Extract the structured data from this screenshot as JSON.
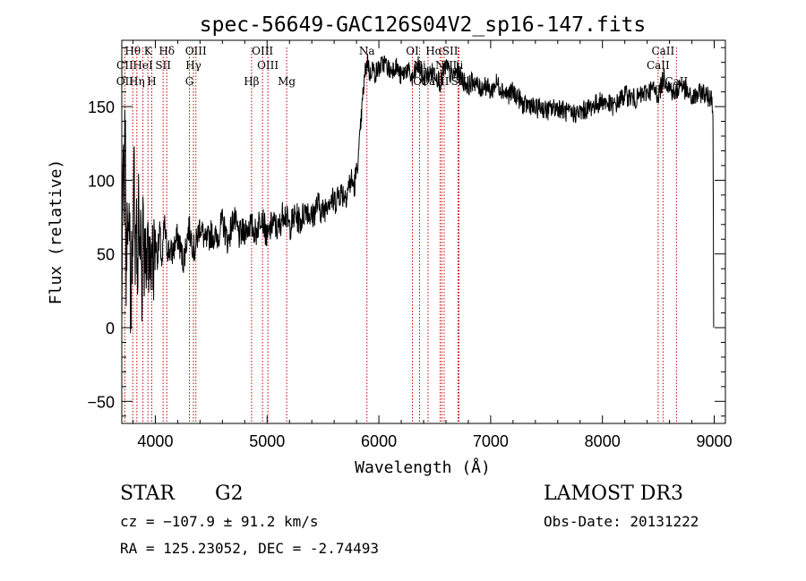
{
  "chart_data": {
    "type": "line",
    "title": "spec-56649-GAC126S04V2_sp16-147.fits",
    "xlabel": "Wavelength (Å)",
    "ylabel": "Flux (relative)",
    "xlim": [
      3700,
      9100
    ],
    "ylim": [
      -65,
      195
    ],
    "xticks": [
      4000,
      5000,
      6000,
      7000,
      8000,
      9000
    ],
    "yticks": [
      -50,
      0,
      50,
      100,
      150
    ],
    "series": [
      {
        "name": "flux",
        "x": [
          3700,
          3710,
          3720,
          3730,
          3740,
          3750,
          3760,
          3770,
          3780,
          3790,
          3800,
          3810,
          3820,
          3830,
          3840,
          3850,
          3860,
          3870,
          3880,
          3890,
          3900,
          3910,
          3920,
          3930,
          3940,
          3950,
          3960,
          3970,
          3980,
          3990,
          4000,
          4020,
          4040,
          4060,
          4080,
          4100,
          4150,
          4200,
          4250,
          4300,
          4350,
          4400,
          4450,
          4500,
          4550,
          4600,
          4650,
          4700,
          4750,
          4800,
          4850,
          4900,
          4950,
          5000,
          5050,
          5100,
          5150,
          5200,
          5250,
          5300,
          5350,
          5400,
          5450,
          5500,
          5550,
          5600,
          5650,
          5700,
          5750,
          5780,
          5800,
          5820,
          5840,
          5860,
          5880,
          5900,
          5920,
          5940,
          5960,
          6000,
          6050,
          6100,
          6150,
          6200,
          6250,
          6300,
          6350,
          6400,
          6450,
          6500,
          6550,
          6600,
          6650,
          6700,
          6750,
          6800,
          6850,
          6900,
          6950,
          7000,
          7050,
          7100,
          7150,
          7200,
          7250,
          7300,
          7350,
          7400,
          7450,
          7500,
          7600,
          7700,
          7800,
          7900,
          8000,
          8100,
          8200,
          8300,
          8400,
          8450,
          8500,
          8550,
          8600,
          8650,
          8700,
          8750,
          8800,
          8850,
          8900,
          8950,
          8980,
          8990,
          8995
        ],
        "y": [
          0,
          130,
          60,
          150,
          20,
          110,
          40,
          90,
          -5,
          70,
          30,
          115,
          50,
          85,
          10,
          100,
          35,
          75,
          20,
          95,
          45,
          60,
          15,
          80,
          40,
          65,
          25,
          70,
          35,
          55,
          60,
          48,
          65,
          40,
          72,
          55,
          50,
          62,
          45,
          68,
          52,
          70,
          57,
          64,
          60,
          72,
          58,
          75,
          62,
          66,
          70,
          64,
          78,
          60,
          72,
          66,
          80,
          68,
          76,
          72,
          82,
          74,
          84,
          78,
          88,
          85,
          92,
          90,
          100,
          96,
          106,
          118,
          140,
          160,
          175,
          182,
          170,
          178,
          172,
          176,
          180,
          174,
          178,
          170,
          176,
          168,
          178,
          170,
          172,
          174,
          166,
          178,
          170,
          174,
          168,
          164,
          168,
          162,
          165,
          160,
          166,
          162,
          158,
          160,
          156,
          150,
          152,
          148,
          150,
          147,
          150,
          145,
          146,
          150,
          154,
          150,
          158,
          155,
          160,
          162,
          158,
          170,
          163,
          158,
          166,
          160,
          155,
          158,
          160,
          156,
          158,
          140,
          0
        ]
      }
    ],
    "lines": [
      {
        "label": "Hθ",
        "x": 3798
      },
      {
        "label": "K",
        "x": 3934
      },
      {
        "label": "Hδ",
        "x": 4102
      },
      {
        "label": "OIII",
        "x": 4363
      },
      {
        "label": "OIII",
        "x": 4959
      },
      {
        "label": "Na",
        "x": 5893
      },
      {
        "label": "OI",
        "x": 6300
      },
      {
        "label": "HαSII",
        "x": 6563
      },
      {
        "label": "CaII",
        "x": 8542
      },
      {
        "label": "CII",
        "x": 3727
      },
      {
        "label": "HeI",
        "x": 3889
      },
      {
        "label": "SII",
        "x": 4070
      },
      {
        "label": "Hγ",
        "x": 4341
      },
      {
        "label": "OIII",
        "x": 5007
      },
      {
        "label": "Ni",
        "x": 6364
      },
      {
        "label": "NII",
        "x": 6584
      },
      {
        "label": "Li",
        "x": 6708
      },
      {
        "label": "CaII",
        "x": 8498
      },
      {
        "label": "OII",
        "x": 3727
      },
      {
        "label": "Hη",
        "x": 3835
      },
      {
        "label": "H",
        "x": 3968
      },
      {
        "label": "G",
        "x": 4305
      },
      {
        "label": "Hβ",
        "x": 4861
      },
      {
        "label": "Mg",
        "x": 5175
      },
      {
        "label": "OI",
        "x": 6364
      },
      {
        "label": "Ca",
        "x": 6440
      },
      {
        "label": "NII",
        "x": 6548
      },
      {
        "label": "SII",
        "x": 6716
      },
      {
        "label": "CaII",
        "x": 8662
      }
    ]
  },
  "info": {
    "object_class": "STAR",
    "subclass": "G2",
    "survey": "LAMOST DR3",
    "cz": "cz = −107.9 ± 91.2 km/s",
    "obs_date": "Obs-Date: 20131222",
    "coords": "RA = 125.23052, DEC =  -2.74493"
  },
  "colors": {
    "line_marker": "#c00000",
    "spectrum": "#000000",
    "axis": "#000000"
  }
}
